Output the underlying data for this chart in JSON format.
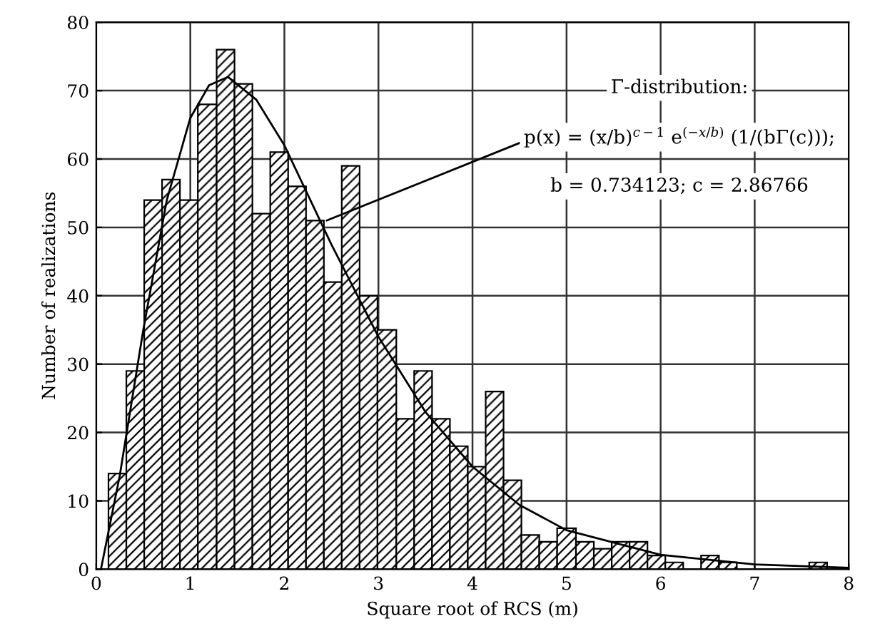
{
  "chart_data": {
    "type": "histogram",
    "xlabel": "Square root of RCS (m)",
    "ylabel": "Number of realizations",
    "xlim": [
      0,
      8
    ],
    "xticks": [
      0,
      1,
      2,
      3,
      4,
      5,
      6,
      7,
      8
    ],
    "ylim": [
      0,
      80
    ],
    "yticks": [
      0,
      10,
      20,
      30,
      40,
      50,
      60,
      70,
      80
    ],
    "grid": true,
    "series": [
      {
        "color": "#000000",
        "bins": [
          0.13,
          0.32,
          0.51,
          0.7,
          0.89,
          1.08,
          1.28,
          1.47,
          1.66,
          1.85,
          2.04,
          2.23,
          2.42,
          2.61,
          2.8,
          2.99,
          3.19,
          3.38,
          3.57,
          3.76,
          3.95,
          4.14,
          4.33,
          4.52,
          4.71,
          4.9,
          5.1,
          5.29,
          5.48,
          5.67,
          5.86,
          6.05,
          6.24,
          6.43,
          6.62,
          6.81,
          7.58,
          7.77
        ],
        "values": [
          14,
          29,
          54,
          57,
          54,
          68,
          76,
          71,
          52,
          61,
          56,
          51,
          42,
          59,
          40,
          35,
          22,
          29,
          22,
          18,
          15,
          26,
          13,
          5,
          4,
          6,
          4,
          3,
          4,
          4,
          2,
          1,
          null,
          2,
          1,
          null,
          1
        ]
      },
      {
        "type": "line",
        "color": "#000000",
        "x": [
          0.05,
          0.25,
          0.5,
          0.75,
          1.0,
          1.2,
          1.4,
          1.7,
          2.0,
          2.5,
          3.0,
          3.5,
          4.0,
          4.5,
          5.0,
          6.0,
          7.0,
          8.0
        ],
        "values": [
          0,
          13.7,
          35,
          54,
          66,
          70.8,
          72,
          68.7,
          62,
          47.5,
          34,
          23,
          15,
          9.4,
          5.7,
          2.1,
          0.7,
          0.2
        ]
      }
    ],
    "annotations": [
      "Γ-distribution:",
      {
        "text": "p(x) = (x/b)$^{c−1}$ e$^{(−x/b)}$ (1/(bΓ(c)));",
        "x": 2.45,
        "y": 51
      },
      "b = 0.734123; c = 2.86766"
    ]
  }
}
